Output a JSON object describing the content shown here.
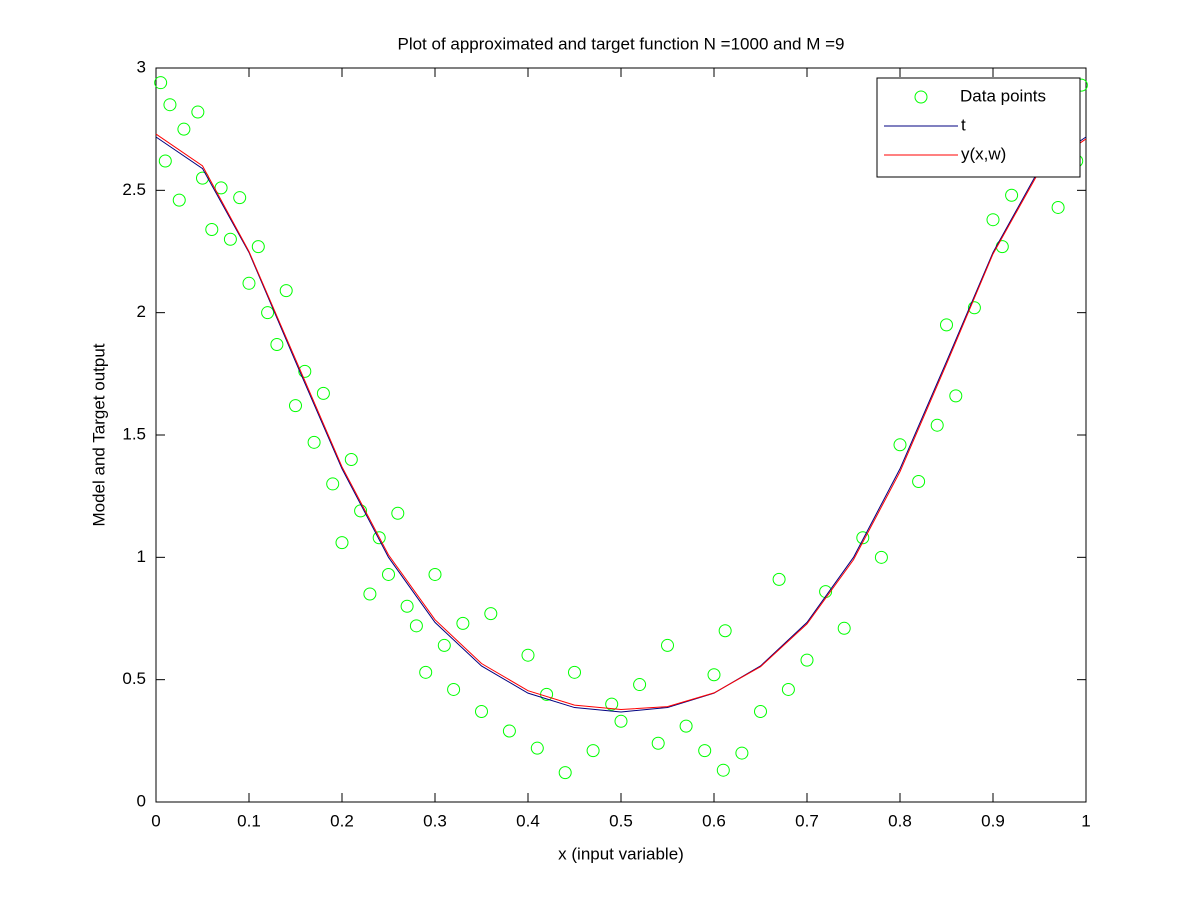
{
  "chart_data": {
    "type": "scatter",
    "title": "Plot of approximated and target function N =1000 and M =9",
    "x_label": "x (input variable)",
    "y_label": "Model and Target output",
    "xlim": [
      0,
      1
    ],
    "ylim": [
      0,
      3
    ],
    "xticks": [
      0,
      0.1,
      0.2,
      0.3,
      0.4,
      0.5,
      0.6,
      0.7,
      0.8,
      0.9,
      1
    ],
    "yticks": [
      0,
      0.5,
      1,
      1.5,
      2,
      2.5,
      3
    ],
    "legend": "northeast",
    "series": [
      {
        "name": "Data points",
        "type": "scatter",
        "color": "#00ff00",
        "x": [
          0.005,
          0.01,
          0.015,
          0.025,
          0.03,
          0.045,
          0.05,
          0.06,
          0.07,
          0.08,
          0.09,
          0.1,
          0.11,
          0.12,
          0.13,
          0.14,
          0.15,
          0.16,
          0.17,
          0.18,
          0.19,
          0.2,
          0.21,
          0.22,
          0.23,
          0.24,
          0.25,
          0.26,
          0.27,
          0.28,
          0.29,
          0.3,
          0.31,
          0.32,
          0.33,
          0.35,
          0.36,
          0.38,
          0.4,
          0.41,
          0.42,
          0.44,
          0.45,
          0.47,
          0.49,
          0.5,
          0.52,
          0.54,
          0.55,
          0.57,
          0.59,
          0.6,
          0.61,
          0.612,
          0.63,
          0.65,
          0.67,
          0.68,
          0.7,
          0.72,
          0.74,
          0.76,
          0.78,
          0.8,
          0.82,
          0.84,
          0.85,
          0.86,
          0.88,
          0.9,
          0.91,
          0.92,
          0.94,
          0.96,
          0.97,
          0.98,
          0.99,
          0.995
        ],
        "values": [
          2.94,
          2.62,
          2.85,
          2.46,
          2.75,
          2.82,
          2.55,
          2.34,
          2.51,
          2.3,
          2.47,
          2.12,
          2.27,
          2.0,
          1.87,
          2.09,
          1.62,
          1.76,
          1.47,
          1.67,
          1.3,
          1.06,
          1.4,
          1.19,
          0.85,
          1.08,
          0.93,
          1.18,
          0.8,
          0.72,
          0.53,
          0.93,
          0.64,
          0.46,
          0.73,
          0.37,
          0.77,
          0.29,
          0.6,
          0.22,
          0.44,
          0.12,
          0.53,
          0.21,
          0.4,
          0.33,
          0.48,
          0.24,
          0.64,
          0.31,
          0.21,
          0.52,
          0.13,
          0.7,
          0.2,
          0.37,
          0.91,
          0.46,
          0.58,
          0.86,
          0.71,
          1.08,
          1.0,
          1.46,
          1.31,
          1.54,
          1.95,
          1.66,
          2.02,
          2.38,
          2.27,
          2.48,
          2.67,
          2.6,
          2.43,
          2.76,
          2.62,
          2.93
        ]
      },
      {
        "name": "t",
        "type": "line",
        "color": "#000080",
        "x": [
          0,
          0.05,
          0.1,
          0.15,
          0.2,
          0.25,
          0.3,
          0.35,
          0.4,
          0.45,
          0.5,
          0.55,
          0.6,
          0.65,
          0.7,
          0.75,
          0.8,
          0.85,
          0.9,
          0.95,
          1
        ],
        "values": [
          2.718,
          2.589,
          2.246,
          1.8,
          1.362,
          1.0,
          0.734,
          0.556,
          0.445,
          0.386,
          0.368,
          0.386,
          0.445,
          0.556,
          0.734,
          1.0,
          1.362,
          1.8,
          2.246,
          2.589,
          2.718
        ]
      },
      {
        "name": "y(x,w)",
        "type": "line",
        "color": "#ff0000",
        "x": [
          0,
          0.05,
          0.1,
          0.15,
          0.2,
          0.25,
          0.3,
          0.35,
          0.4,
          0.45,
          0.5,
          0.55,
          0.6,
          0.65,
          0.7,
          0.75,
          0.8,
          0.85,
          0.9,
          0.95,
          1
        ],
        "values": [
          2.73,
          2.6,
          2.25,
          1.81,
          1.37,
          1.01,
          0.745,
          0.566,
          0.455,
          0.396,
          0.378,
          0.39,
          0.446,
          0.553,
          0.728,
          0.99,
          1.35,
          1.79,
          2.24,
          2.58,
          2.71
        ]
      }
    ]
  }
}
